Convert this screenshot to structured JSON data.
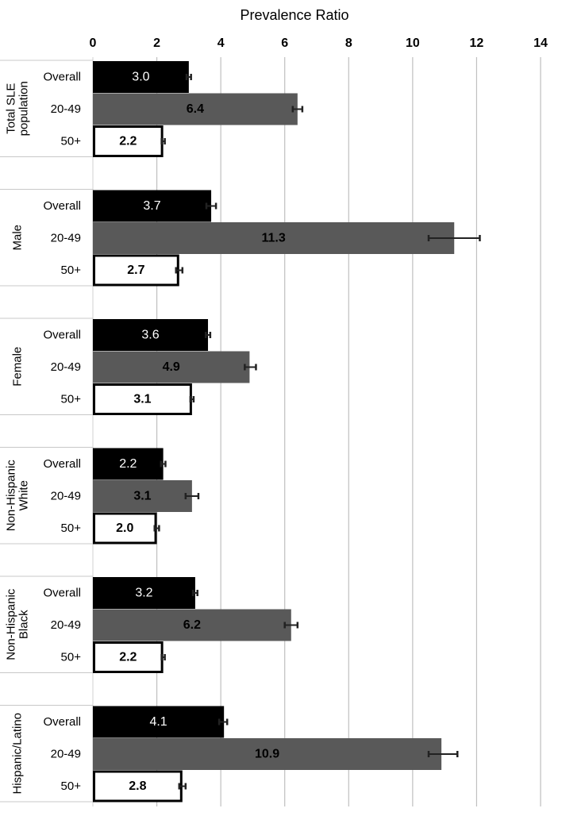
{
  "chart_data": {
    "type": "bar",
    "orientation": "horizontal",
    "title": "",
    "xlabel": "Prevalence Ratio",
    "ylabel": "",
    "xlim": [
      0,
      14
    ],
    "xticks": [
      0,
      2,
      4,
      6,
      8,
      10,
      12,
      14
    ],
    "grid": true,
    "legend": "none",
    "colors": {
      "Overall": "#000000",
      "20-49": "#595959",
      "50+": "#ffffff",
      "outline": "#000000",
      "grid": "#bfbfbf"
    },
    "groups": [
      {
        "name": "Total SLE population",
        "label_lines": [
          "Total SLE",
          "population"
        ],
        "bars": [
          {
            "category": "Overall",
            "value": 3.0,
            "label": "3.0",
            "ci": [
              2.93,
              3.07
            ]
          },
          {
            "category": "20-49",
            "value": 6.4,
            "label": "6.4",
            "ci": [
              6.25,
              6.55
            ]
          },
          {
            "category": "50+",
            "value": 2.2,
            "label": "2.2",
            "ci": [
              2.15,
              2.25
            ]
          }
        ]
      },
      {
        "name": "Male",
        "label_lines": [
          "Male"
        ],
        "bars": [
          {
            "category": "Overall",
            "value": 3.7,
            "label": "3.7",
            "ci": [
              3.55,
              3.85
            ]
          },
          {
            "category": "20-49",
            "value": 11.3,
            "label": "11.3",
            "ci": [
              10.5,
              12.1
            ]
          },
          {
            "category": "50+",
            "value": 2.7,
            "label": "2.7",
            "ci": [
              2.6,
              2.8
            ]
          }
        ]
      },
      {
        "name": "Female",
        "label_lines": [
          "Female"
        ],
        "bars": [
          {
            "category": "Overall",
            "value": 3.6,
            "label": "3.6",
            "ci": [
              3.53,
              3.67
            ]
          },
          {
            "category": "20-49",
            "value": 4.9,
            "label": "4.9",
            "ci": [
              4.75,
              5.1
            ]
          },
          {
            "category": "50+",
            "value": 3.1,
            "label": "3.1",
            "ci": [
              3.05,
              3.15
            ]
          }
        ]
      },
      {
        "name": "Non-Hispanic White",
        "label_lines": [
          "Non-Hispanic",
          "White"
        ],
        "bars": [
          {
            "category": "Overall",
            "value": 2.2,
            "label": "2.2",
            "ci": [
              2.13,
              2.27
            ]
          },
          {
            "category": "20-49",
            "value": 3.1,
            "label": "3.1",
            "ci": [
              2.9,
              3.3
            ]
          },
          {
            "category": "50+",
            "value": 2.0,
            "label": "2.0",
            "ci": [
              1.93,
              2.07
            ]
          }
        ]
      },
      {
        "name": "Non-Hispanic Black",
        "label_lines": [
          "Non-Hispanic",
          "Black"
        ],
        "bars": [
          {
            "category": "Overall",
            "value": 3.2,
            "label": "3.2",
            "ci": [
              3.13,
              3.27
            ]
          },
          {
            "category": "20-49",
            "value": 6.2,
            "label": "6.2",
            "ci": [
              6.0,
              6.4
            ]
          },
          {
            "category": "50+",
            "value": 2.2,
            "label": "2.2",
            "ci": [
              2.15,
              2.25
            ]
          }
        ]
      },
      {
        "name": "Hispanic/Latino",
        "label_lines": [
          "Hispanic/Latino"
        ],
        "bars": [
          {
            "category": "Overall",
            "value": 4.1,
            "label": "4.1",
            "ci": [
              3.95,
              4.2
            ]
          },
          {
            "category": "20-49",
            "value": 10.9,
            "label": "10.9",
            "ci": [
              10.5,
              11.4
            ]
          },
          {
            "category": "50+",
            "value": 2.8,
            "label": "2.8",
            "ci": [
              2.7,
              2.9
            ]
          }
        ]
      }
    ]
  }
}
